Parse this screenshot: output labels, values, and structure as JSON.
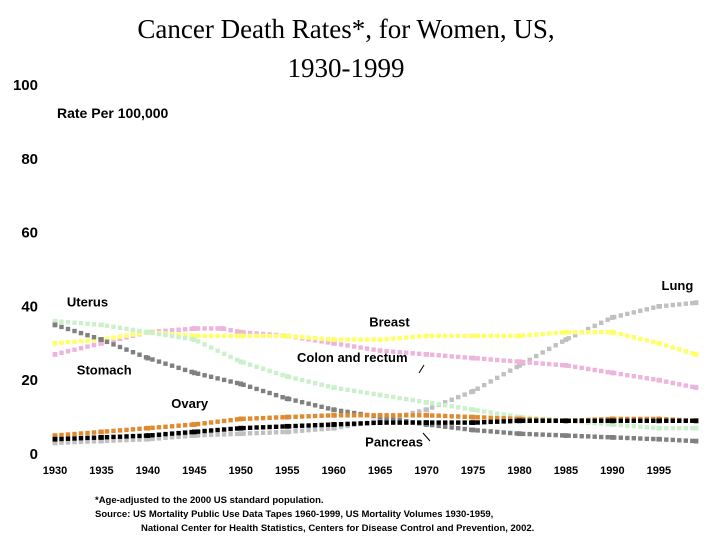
{
  "chart_data": {
    "type": "scatter",
    "title_lines": [
      "Cancer Death Rates*, for Women, US,",
      "1930-1999"
    ],
    "ylabel": "Rate Per 100,000",
    "xlim": [
      1930,
      1999
    ],
    "ylim": [
      0,
      100
    ],
    "yticks": [
      0,
      20,
      40,
      60,
      80,
      100
    ],
    "xticks": [
      1930,
      1935,
      1940,
      1945,
      1950,
      1955,
      1960,
      1965,
      1970,
      1975,
      1980,
      1985,
      1990,
      1995
    ],
    "grid": false,
    "legend": "none",
    "series": [
      {
        "name": "Lung",
        "color": "#c0c0c0",
        "x": [
          1930,
          1935,
          1940,
          1945,
          1950,
          1955,
          1960,
          1965,
          1970,
          1975,
          1980,
          1985,
          1990,
          1995,
          1999
        ],
        "y": [
          3,
          3.5,
          4,
          5,
          5.5,
          6,
          7,
          9,
          12,
          17,
          24,
          31,
          37,
          40,
          41
        ]
      },
      {
        "name": "Uterus",
        "color": "#eeb4dc",
        "x": [
          1930,
          1935,
          1940,
          1945,
          1948,
          1950,
          1955,
          1960,
          1965,
          1970,
          1975,
          1980,
          1985,
          1990,
          1995,
          1999
        ],
        "y": [
          27,
          30,
          33,
          34,
          34,
          33,
          32,
          30,
          28,
          27,
          26,
          25,
          24,
          22,
          20,
          18
        ]
      },
      {
        "name": "Breast",
        "color": "#ffff66",
        "x": [
          1930,
          1935,
          1940,
          1945,
          1950,
          1955,
          1960,
          1965,
          1970,
          1975,
          1980,
          1985,
          1990,
          1995,
          1999
        ],
        "y": [
          30,
          31,
          33,
          32,
          32,
          32,
          31,
          31,
          32,
          32,
          32,
          33,
          33,
          30,
          27
        ]
      },
      {
        "name": "Colon and rectum",
        "color": "#ccf0cc",
        "x": [
          1930,
          1935,
          1940,
          1945,
          1950,
          1955,
          1960,
          1965,
          1970,
          1975,
          1980,
          1985,
          1990,
          1995,
          1999
        ],
        "y": [
          36,
          35,
          33,
          31,
          25,
          21,
          18,
          16,
          14,
          12,
          10,
          9,
          8,
          7,
          7
        ]
      },
      {
        "name": "Stomach",
        "color": "#808080",
        "x": [
          1930,
          1935,
          1940,
          1945,
          1950,
          1955,
          1960,
          1965,
          1970,
          1975,
          1980,
          1985,
          1990,
          1995,
          1999
        ],
        "y": [
          35,
          31,
          26,
          22,
          19,
          15,
          12,
          10,
          8,
          6.5,
          5.5,
          5,
          4.5,
          4,
          3.5
        ]
      },
      {
        "name": "Ovary",
        "color": "#e08a30",
        "x": [
          1930,
          1935,
          1940,
          1945,
          1950,
          1955,
          1960,
          1965,
          1970,
          1975,
          1980,
          1985,
          1990,
          1995,
          1999
        ],
        "y": [
          5,
          6,
          7,
          8,
          9.5,
          10,
          10.5,
          10.5,
          10.5,
          10,
          9.5,
          9,
          9.5,
          9.5,
          9
        ]
      },
      {
        "name": "Pancreas",
        "color": "#000000",
        "x": [
          1930,
          1935,
          1940,
          1945,
          1950,
          1955,
          1960,
          1965,
          1970,
          1975,
          1980,
          1985,
          1990,
          1995,
          1999
        ],
        "y": [
          4,
          4.5,
          5,
          6,
          7,
          7.5,
          8,
          8.5,
          8.5,
          8.5,
          9,
          9,
          9,
          9,
          9
        ]
      }
    ],
    "annotations": [
      {
        "text": "Lung",
        "x": 1997,
        "y": 44.5
      },
      {
        "text": "Uterus",
        "x": 1933.5,
        "y": 40
      },
      {
        "text": "Breast",
        "x": 1966,
        "y": 34.5
      },
      {
        "text": "Colon and rectum",
        "x": 1962,
        "y": 25
      },
      {
        "text": "Stomach",
        "x": 1935.3,
        "y": 21.5
      },
      {
        "text": "Ovary",
        "x": 1944.5,
        "y": 12.5
      },
      {
        "text": "Pancreas",
        "x": 1966.5,
        "y": 2
      }
    ],
    "footnote_lines": [
      "*Age-adjusted to the 2000 US standard population.",
      "Source: US Mortality Public Use Data Tapes 1960-1999, US Mortality Volumes 1930-1959,",
      "National Center for Health Statistics, Centers for Disease Control and Prevention, 2002."
    ]
  }
}
